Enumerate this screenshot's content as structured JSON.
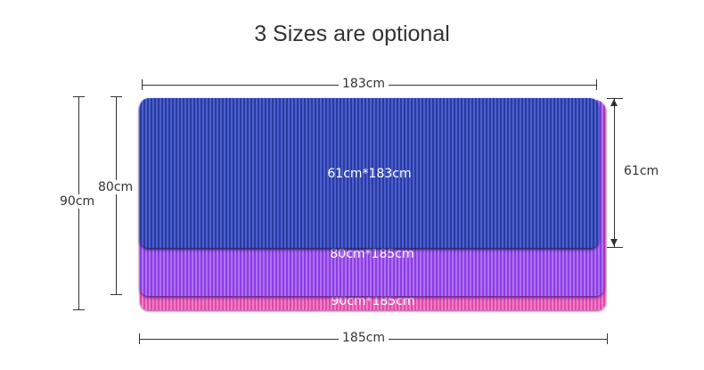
{
  "title": "3 Sizes are optional",
  "mats": [
    {
      "label": "61cm*183cm",
      "color": "#3a4cb8"
    },
    {
      "label": "80cm*185cm",
      "color": "#9a55ea"
    },
    {
      "label": "90cm*185cm",
      "color": "#e860b8"
    }
  ],
  "dimensions": {
    "top": "183cm",
    "bottom": "185cm",
    "left_outer": "90cm",
    "left_inner": "80cm",
    "right": "61cm"
  }
}
